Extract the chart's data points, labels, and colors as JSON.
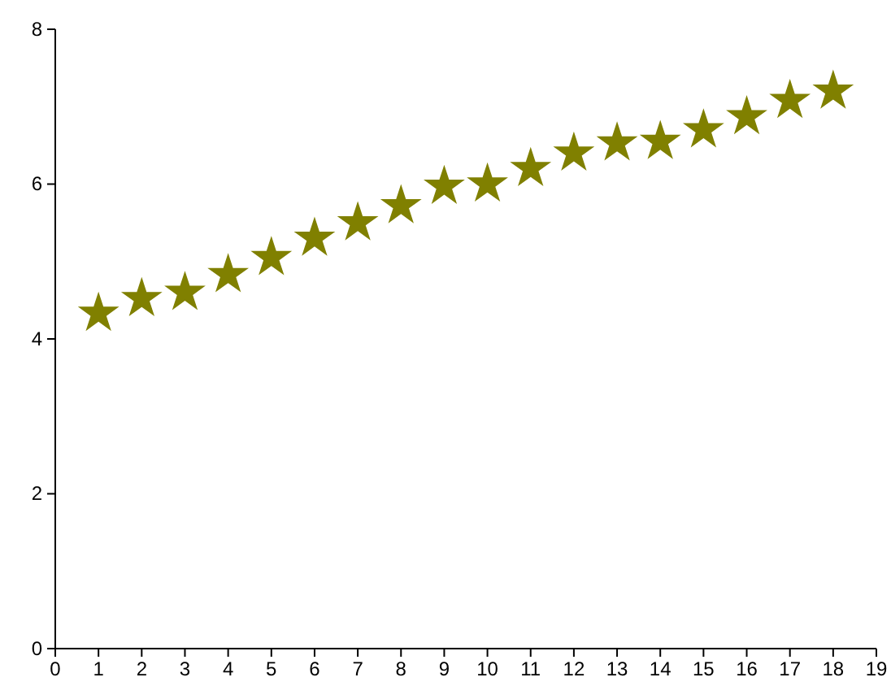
{
  "chart_data": {
    "type": "scatter",
    "marker": "star",
    "x": [
      1,
      2,
      3,
      4,
      5,
      6,
      7,
      8,
      9,
      10,
      11,
      12,
      13,
      14,
      15,
      16,
      17,
      18
    ],
    "series": [
      {
        "color": "#808000",
        "values": [
          4.33,
          4.52,
          4.6,
          4.83,
          5.05,
          5.3,
          5.5,
          5.72,
          5.97,
          6.0,
          6.2,
          6.4,
          6.53,
          6.55,
          6.7,
          6.87,
          7.08,
          7.2
        ]
      }
    ],
    "xlim": [
      0,
      19
    ],
    "xticks": [
      0,
      1,
      2,
      3,
      4,
      5,
      6,
      7,
      8,
      9,
      10,
      11,
      12,
      13,
      14,
      15,
      16,
      17,
      18,
      19
    ],
    "ylim": [
      0,
      8
    ],
    "yticks": [
      0,
      2,
      4,
      6,
      8
    ],
    "grid": false
  }
}
